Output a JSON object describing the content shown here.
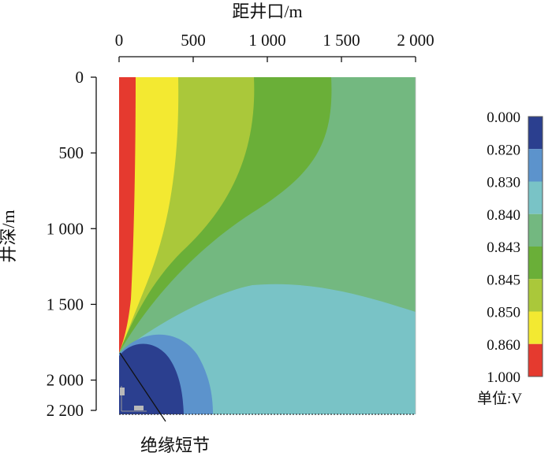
{
  "chart_data": {
    "type": "heatmap",
    "title": "",
    "xlabel": "距井口/m",
    "ylabel": "井深/m",
    "x_axis_position": "top",
    "xlim": [
      0,
      2000
    ],
    "ylim": [
      0,
      2200
    ],
    "y_inverted": true,
    "x_ticks": [
      {
        "value": 0,
        "label": "0"
      },
      {
        "value": 500,
        "label": "500"
      },
      {
        "value": 1000,
        "label": "1 000"
      },
      {
        "value": 1500,
        "label": "1 500"
      },
      {
        "value": 2000,
        "label": "2 000"
      }
    ],
    "y_ticks": [
      {
        "value": 0,
        "label": "0"
      },
      {
        "value": 500,
        "label": "500"
      },
      {
        "value": 1000,
        "label": "1 000"
      },
      {
        "value": 1500,
        "label": "1 500"
      },
      {
        "value": 2000,
        "label": "2 000"
      },
      {
        "value": 2200,
        "label": "2 200"
      }
    ],
    "legend": {
      "placement": "right",
      "unit_label": "单位:V",
      "labels": [
        "0.000",
        "0.820",
        "0.830",
        "0.840",
        "0.843",
        "0.845",
        "0.850",
        "0.860",
        "1.000"
      ],
      "bands": [
        {
          "from": 0.0,
          "to": 0.82,
          "color": "#2b3f8f"
        },
        {
          "from": 0.82,
          "to": 0.83,
          "color": "#5c93cc"
        },
        {
          "from": 0.83,
          "to": 0.84,
          "color": "#79c3c6"
        },
        {
          "from": 0.84,
          "to": 0.843,
          "color": "#73b880"
        },
        {
          "from": 0.843,
          "to": 0.845,
          "color": "#6aaf38"
        },
        {
          "from": 0.845,
          "to": 0.85,
          "color": "#aac83a"
        },
        {
          "from": 0.85,
          "to": 0.86,
          "color": "#f3e931"
        },
        {
          "from": 0.86,
          "to": 1.0,
          "color": "#e53a2f"
        }
      ]
    },
    "annotation": {
      "text": "绝缘短节",
      "depth": 1800
    },
    "insulated_sub_depth": 1800
  }
}
